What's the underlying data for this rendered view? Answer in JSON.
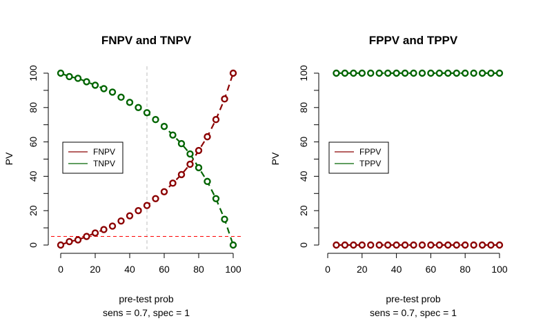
{
  "chart_data": [
    {
      "type": "line",
      "title": "FNPV and TNPV",
      "xlabel": "pre-test prob",
      "xlabel2": "sens =  0.7, spec =  1",
      "ylabel": "PV",
      "xlim": [
        0,
        100
      ],
      "ylim": [
        0,
        100
      ],
      "xticks": [
        "0",
        "20",
        "40",
        "60",
        "80",
        "100"
      ],
      "yticks": [
        "0",
        "20",
        "40",
        "60",
        "80",
        "100"
      ],
      "grid": false,
      "legend_position": "left-middle",
      "x": [
        0,
        5,
        10,
        15,
        20,
        25,
        30,
        35,
        40,
        45,
        50,
        55,
        60,
        65,
        70,
        75,
        80,
        85,
        90,
        95,
        100
      ],
      "series": [
        {
          "name": "FNPV",
          "color": "#8b0000",
          "values": [
            0,
            2,
            3,
            5,
            7,
            9,
            11,
            14,
            17,
            20,
            23,
            27,
            31,
            36,
            41,
            47,
            55,
            63,
            73,
            85,
            100
          ]
        },
        {
          "name": "TNPV",
          "color": "#006400",
          "values": [
            100,
            98,
            97,
            95,
            93,
            91,
            89,
            86,
            83,
            80,
            77,
            73,
            69,
            64,
            59,
            53,
            45,
            37,
            27,
            15,
            0
          ]
        }
      ],
      "reference_lines": [
        {
          "orientation": "vertical",
          "value": 50,
          "color": "#bebebe",
          "style": "dashed"
        },
        {
          "orientation": "horizontal",
          "value": 5,
          "color": "#ff0000",
          "style": "dashed"
        }
      ]
    },
    {
      "type": "line",
      "title": "FPPV and TPPV",
      "xlabel": "pre-test prob",
      "xlabel2": "sens =  0.7, spec =  1",
      "ylabel": "PV",
      "xlim": [
        0,
        100
      ],
      "ylim": [
        0,
        100
      ],
      "xticks": [
        "0",
        "20",
        "40",
        "60",
        "80",
        "100"
      ],
      "yticks": [
        "0",
        "20",
        "40",
        "60",
        "80",
        "100"
      ],
      "grid": false,
      "legend_position": "left-middle",
      "x": [
        5,
        10,
        15,
        20,
        25,
        30,
        35,
        40,
        45,
        50,
        55,
        60,
        65,
        70,
        75,
        80,
        85,
        90,
        95,
        100
      ],
      "series": [
        {
          "name": "FPPV",
          "color": "#8b0000",
          "values": [
            0,
            0,
            0,
            0,
            0,
            0,
            0,
            0,
            0,
            0,
            0,
            0,
            0,
            0,
            0,
            0,
            0,
            0,
            0,
            0
          ]
        },
        {
          "name": "TPPV",
          "color": "#006400",
          "values": [
            100,
            100,
            100,
            100,
            100,
            100,
            100,
            100,
            100,
            100,
            100,
            100,
            100,
            100,
            100,
            100,
            100,
            100,
            100,
            100
          ]
        }
      ],
      "reference_lines": []
    }
  ]
}
